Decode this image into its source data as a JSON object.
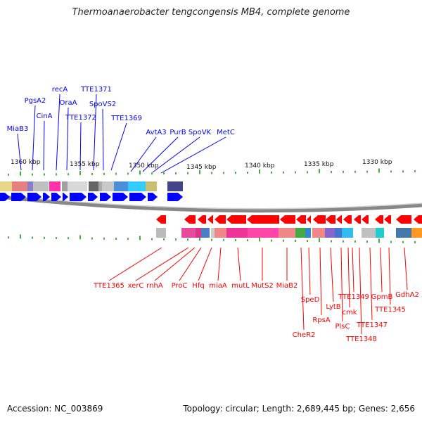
{
  "title": "Thermoanaerobacter tengcongensis MB4, complete genome",
  "footer": {
    "accession": "Accession: NC_003869",
    "topology": "Topology: circular; Length: 2,689,445 bp; Genes: 2,656"
  },
  "scale_labels": [
    "1360 kbp",
    "1355 kbp",
    "1350 kbp",
    "1345 kbp",
    "1340 kbp",
    "1335 kbp",
    "1330 kbp"
  ],
  "colors": {
    "forward": "#0000ff",
    "reverse": "#ff0000",
    "tick": "#009900",
    "backbone": "#888888"
  },
  "forward_genes": [
    "MiaB3",
    "PgsA2",
    "CinA",
    "recA",
    "OraA",
    "TTE1372",
    "TTE1371",
    "SpoVS2",
    "TTE1369",
    "AvtA3",
    "PurB",
    "SpoVK",
    "MetC"
  ],
  "reverse_genes": [
    "TTE1365",
    "xerC",
    "rnhA",
    "ProC",
    "Hfq",
    "miaA",
    "mutL",
    "MutS2",
    "MiaB2",
    "CheR2",
    "SpeD",
    "RpsA",
    "LytB",
    "PlsC",
    "cmk",
    "TTE1349",
    "TTE1348",
    "TTE1347",
    "GpmB",
    "TTE1345",
    "GdhA2"
  ]
}
